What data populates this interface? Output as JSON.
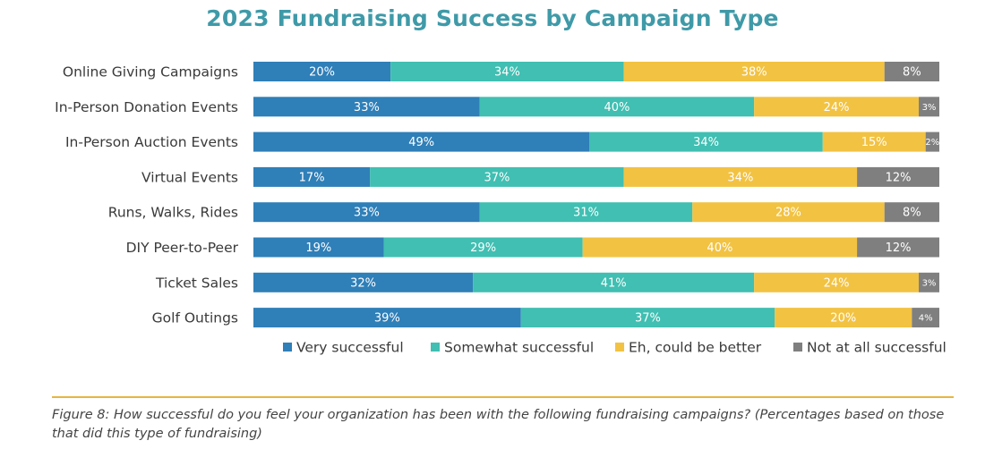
{
  "chart_data": {
    "type": "bar",
    "orientation": "horizontal",
    "stacked": true,
    "percent_stacked": true,
    "title": "2023 Fundraising Success by Campaign Type",
    "categories": [
      "Online Giving Campaigns",
      "In-Person Donation Events",
      "In-Person Auction Events",
      "Virtual Events",
      "Runs, Walks, Rides",
      "DIY Peer-to-Peer",
      "Ticket Sales",
      "Golf Outings"
    ],
    "series": [
      {
        "name": "Very successful",
        "color": "#2f7fb8",
        "values": [
          20,
          33,
          49,
          17,
          33,
          19,
          32,
          39
        ],
        "labels": [
          "20%",
          "33%",
          "49%",
          "17%",
          "33%",
          "19%",
          "32%",
          "39%"
        ]
      },
      {
        "name": "Somewhat successful",
        "color": "#40bfb2",
        "values": [
          34,
          40,
          34,
          37,
          31,
          29,
          41,
          37
        ],
        "labels": [
          "34%",
          "40%",
          "34%",
          "37%",
          "31%",
          "29%",
          "41%",
          "37%"
        ]
      },
      {
        "name": "Eh, could be better",
        "color": "#f2c242",
        "values": [
          38,
          24,
          15,
          34,
          28,
          40,
          24,
          20
        ],
        "labels": [
          "38%",
          "24%",
          "15%",
          "34%",
          "28%",
          "40%",
          "24%",
          "20%"
        ]
      },
      {
        "name": "Not at all successful",
        "color": "#7f7f7f",
        "values": [
          8,
          3,
          2,
          12,
          8,
          12,
          3,
          4
        ],
        "labels": [
          "8%",
          "3%",
          "2%",
          "12%",
          "8%",
          "12%",
          "3%",
          "4%"
        ]
      }
    ],
    "xlim": [
      0,
      100
    ],
    "legend_position": "bottom-right",
    "grid": false
  },
  "caption": "Figure 8: How successful do you feel your organization has been with the following fundraising campaigns? (Percentages based on those that did this type of fundraising)"
}
